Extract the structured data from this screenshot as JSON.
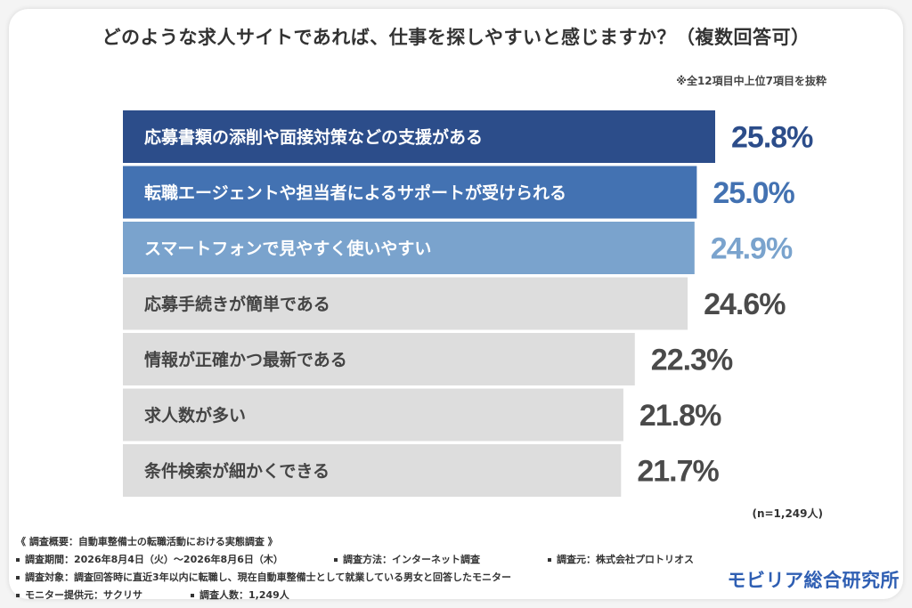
{
  "title": "どのような求人サイトであれば、仕事を探しやすいと感じますか？（複数回答可）",
  "note": "※全12項目中上位7項目を抜粋",
  "n_label": "(n=1,249人)",
  "colors": {
    "top1": "#2c4d8a",
    "top2": "#4372b2",
    "top3": "#7aa3cd",
    "other": "#dddddd",
    "value_top1": "#2c4d8a",
    "value_top2": "#4372b2",
    "value_top3": "#7aa3cd",
    "value_other": "#4a4a4a",
    "label_top": "#ffffff",
    "label_other": "#444444"
  },
  "chart_data": {
    "type": "bar",
    "orientation": "horizontal",
    "categories": [
      "応募書類の添削や面接対策などの支援がある",
      "転職エージェントや担当者によるサポートが受けられる",
      "スマートフォンで見やすく使いやすい",
      "応募手続きが簡単である",
      "情報が正確かつ最新である",
      "求人数が多い",
      "条件検索が細かくできる"
    ],
    "values": [
      25.8,
      25.0,
      24.9,
      24.6,
      22.3,
      21.8,
      21.7
    ],
    "value_labels": [
      "25.8%",
      "25.0%",
      "24.9%",
      "24.6%",
      "22.3%",
      "21.8%",
      "21.7%"
    ],
    "unit": "%",
    "title": "どのような求人サイトであれば、仕事を探しやすいと感じますか？（複数回答可）"
  },
  "survey": {
    "heading": "《 調査概要：自動車整備士の転職活動における実態調査 》",
    "period": "調査期間：2026年8月4日（火）～2026年8月6日（木）",
    "method": "調査方法：インターネット調査",
    "organizer": "調査元：株式会社プロトリオス",
    "target": "調査対象：調査回答時に直近3年以内に転職し、現在自動車整備士として就業している男女と回答したモニター",
    "provider": "モニター提供元：サクリサ",
    "count": "調査人数：1,249人"
  },
  "brand": "モビリア総合研究所"
}
